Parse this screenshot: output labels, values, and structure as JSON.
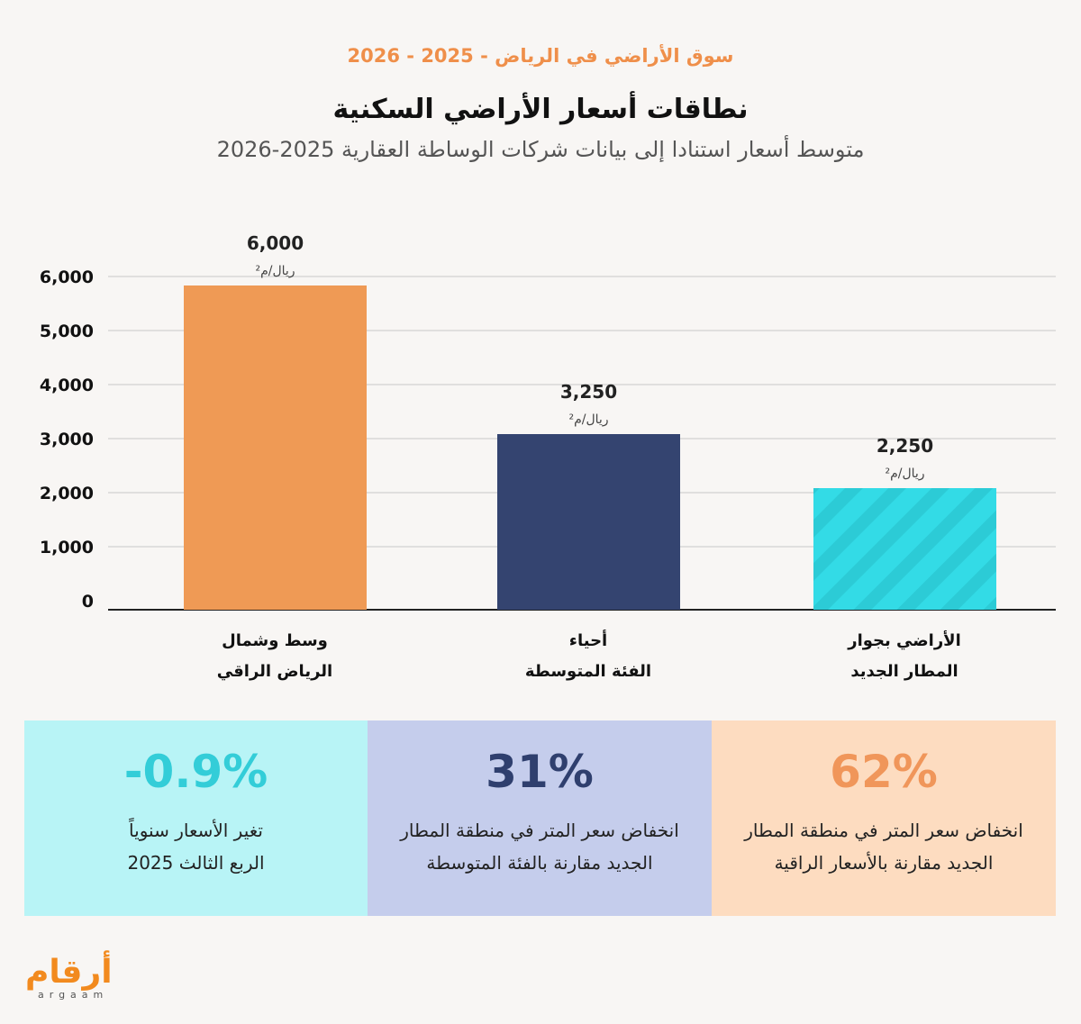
{
  "header": {
    "kicker": "سوق الأراضي في الرياض - 2025 - 2026",
    "title": "نطاقات أسعار الأراضي السكنية",
    "subtitle": "متوسط أسعار استنادا إلى بيانات شركات الوساطة العقارية 2025-2026"
  },
  "chart_data": {
    "type": "bar",
    "title": "نطاقات أسعار الأراضي السكنية",
    "categories": [
      "وسط وشمال الرياض الراقي",
      "أحياء الفئة المتوسطة",
      "الأراضي بجوار المطار الجديد"
    ],
    "category_lines": [
      [
        "وسط وشمال",
        "الرياض الراقي"
      ],
      [
        "أحياء",
        "الفئة المتوسطة"
      ],
      [
        "الأراضي بجوار",
        "المطار الجديد"
      ]
    ],
    "values": [
      6000,
      3250,
      2250
    ],
    "value_labels": [
      "6,000",
      "3,250",
      "2,250"
    ],
    "unit_label": "ريال/م²",
    "colors": [
      "#ef9a55",
      "#344470",
      "#33dbe6"
    ],
    "cyan_pattern": "diagonal-stripes",
    "yticks": [
      0,
      1000,
      2000,
      3000,
      4000,
      5000,
      6000
    ],
    "ytick_labels": [
      "0",
      "1,000",
      "2,000",
      "3,000",
      "4,000",
      "5,000",
      "6,000"
    ],
    "ylim": [
      0,
      6000
    ],
    "grid": true
  },
  "stats": [
    {
      "value": "-0.9%",
      "lines": [
        "تغير الأسعار سنوياً",
        "الربع الثالث 2025"
      ],
      "bg": "#b8f4f6",
      "color": "#33cdd8"
    },
    {
      "value": "31%",
      "lines": [
        "انخفاض سعر المتر في منطقة المطار",
        "الجديد مقارنة بالفئة المتوسطة"
      ],
      "bg": "#c5cdec",
      "color": "#2f3f6e"
    },
    {
      "value": "62%",
      "lines": [
        "انخفاض سعر المتر في منطقة المطار",
        "الجديد مقارنة بالأسعار الراقية"
      ],
      "bg": "#fddcc0",
      "color": "#f0965a"
    }
  ],
  "logo": {
    "arabic": "أرقام",
    "latin": "argaam",
    "color": "#f28a1e"
  }
}
